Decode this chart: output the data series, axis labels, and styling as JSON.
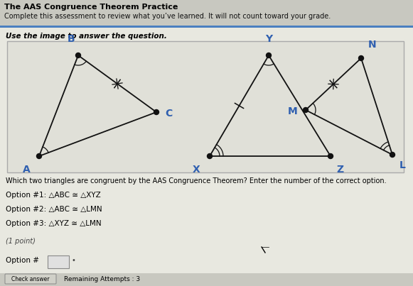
{
  "title_top": "The AAS Congruence Theorem Practice",
  "subtitle": "Complete this assessment to review what you’ve learned. It will not count toward your grade.",
  "instruction": "Use the image to answer the question.",
  "question": "Which two triangles are congruent by the AAS Congruence Theorem? Enter the number of the correct option.",
  "options": [
    "Option #1: △ABC ≅ △XYZ",
    "Option #2: △ABC ≅ △LMN",
    "Option #3: △XYZ ≅ △LMN"
  ],
  "point_label": "(1 point)",
  "answer_label": "Option #",
  "remaining": "Remaining Attempts : 3",
  "bg_color": "#d8d8d0",
  "box_color": "#e8e8e0",
  "header_bg": "#c8c8c0",
  "blue_line": "#4a7fc0",
  "text_color": "#000000",
  "label_color": "#3060b0",
  "tri_color": "#111111",
  "diagram_bg": "#e0e0d8",
  "diagram_border": "#aaaaaa"
}
